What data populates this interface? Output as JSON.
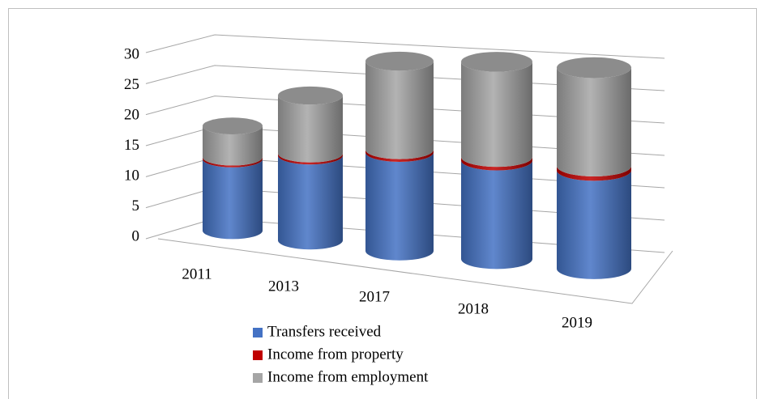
{
  "chart_data": {
    "type": "bar3d_stacked_cylinder",
    "categories": [
      "2011",
      "2013",
      "2017",
      "2018",
      "2019"
    ],
    "series": [
      {
        "name": "Transfers received",
        "color": "#4472c4",
        "values": [
          11.5,
          12.5,
          14.5,
          14,
          13.5
        ]
      },
      {
        "name": "Income from property",
        "color": "#c00000",
        "values": [
          0.3,
          0.3,
          0.4,
          0.5,
          0.6
        ]
      },
      {
        "name": "Income from employment",
        "color": "#a5a5a5",
        "values": [
          5,
          8.5,
          13,
          13.5,
          13.5
        ]
      }
    ],
    "ylim": [
      0,
      30
    ],
    "yticks": [
      0,
      5,
      10,
      15,
      20,
      25,
      30
    ],
    "grid": true
  }
}
